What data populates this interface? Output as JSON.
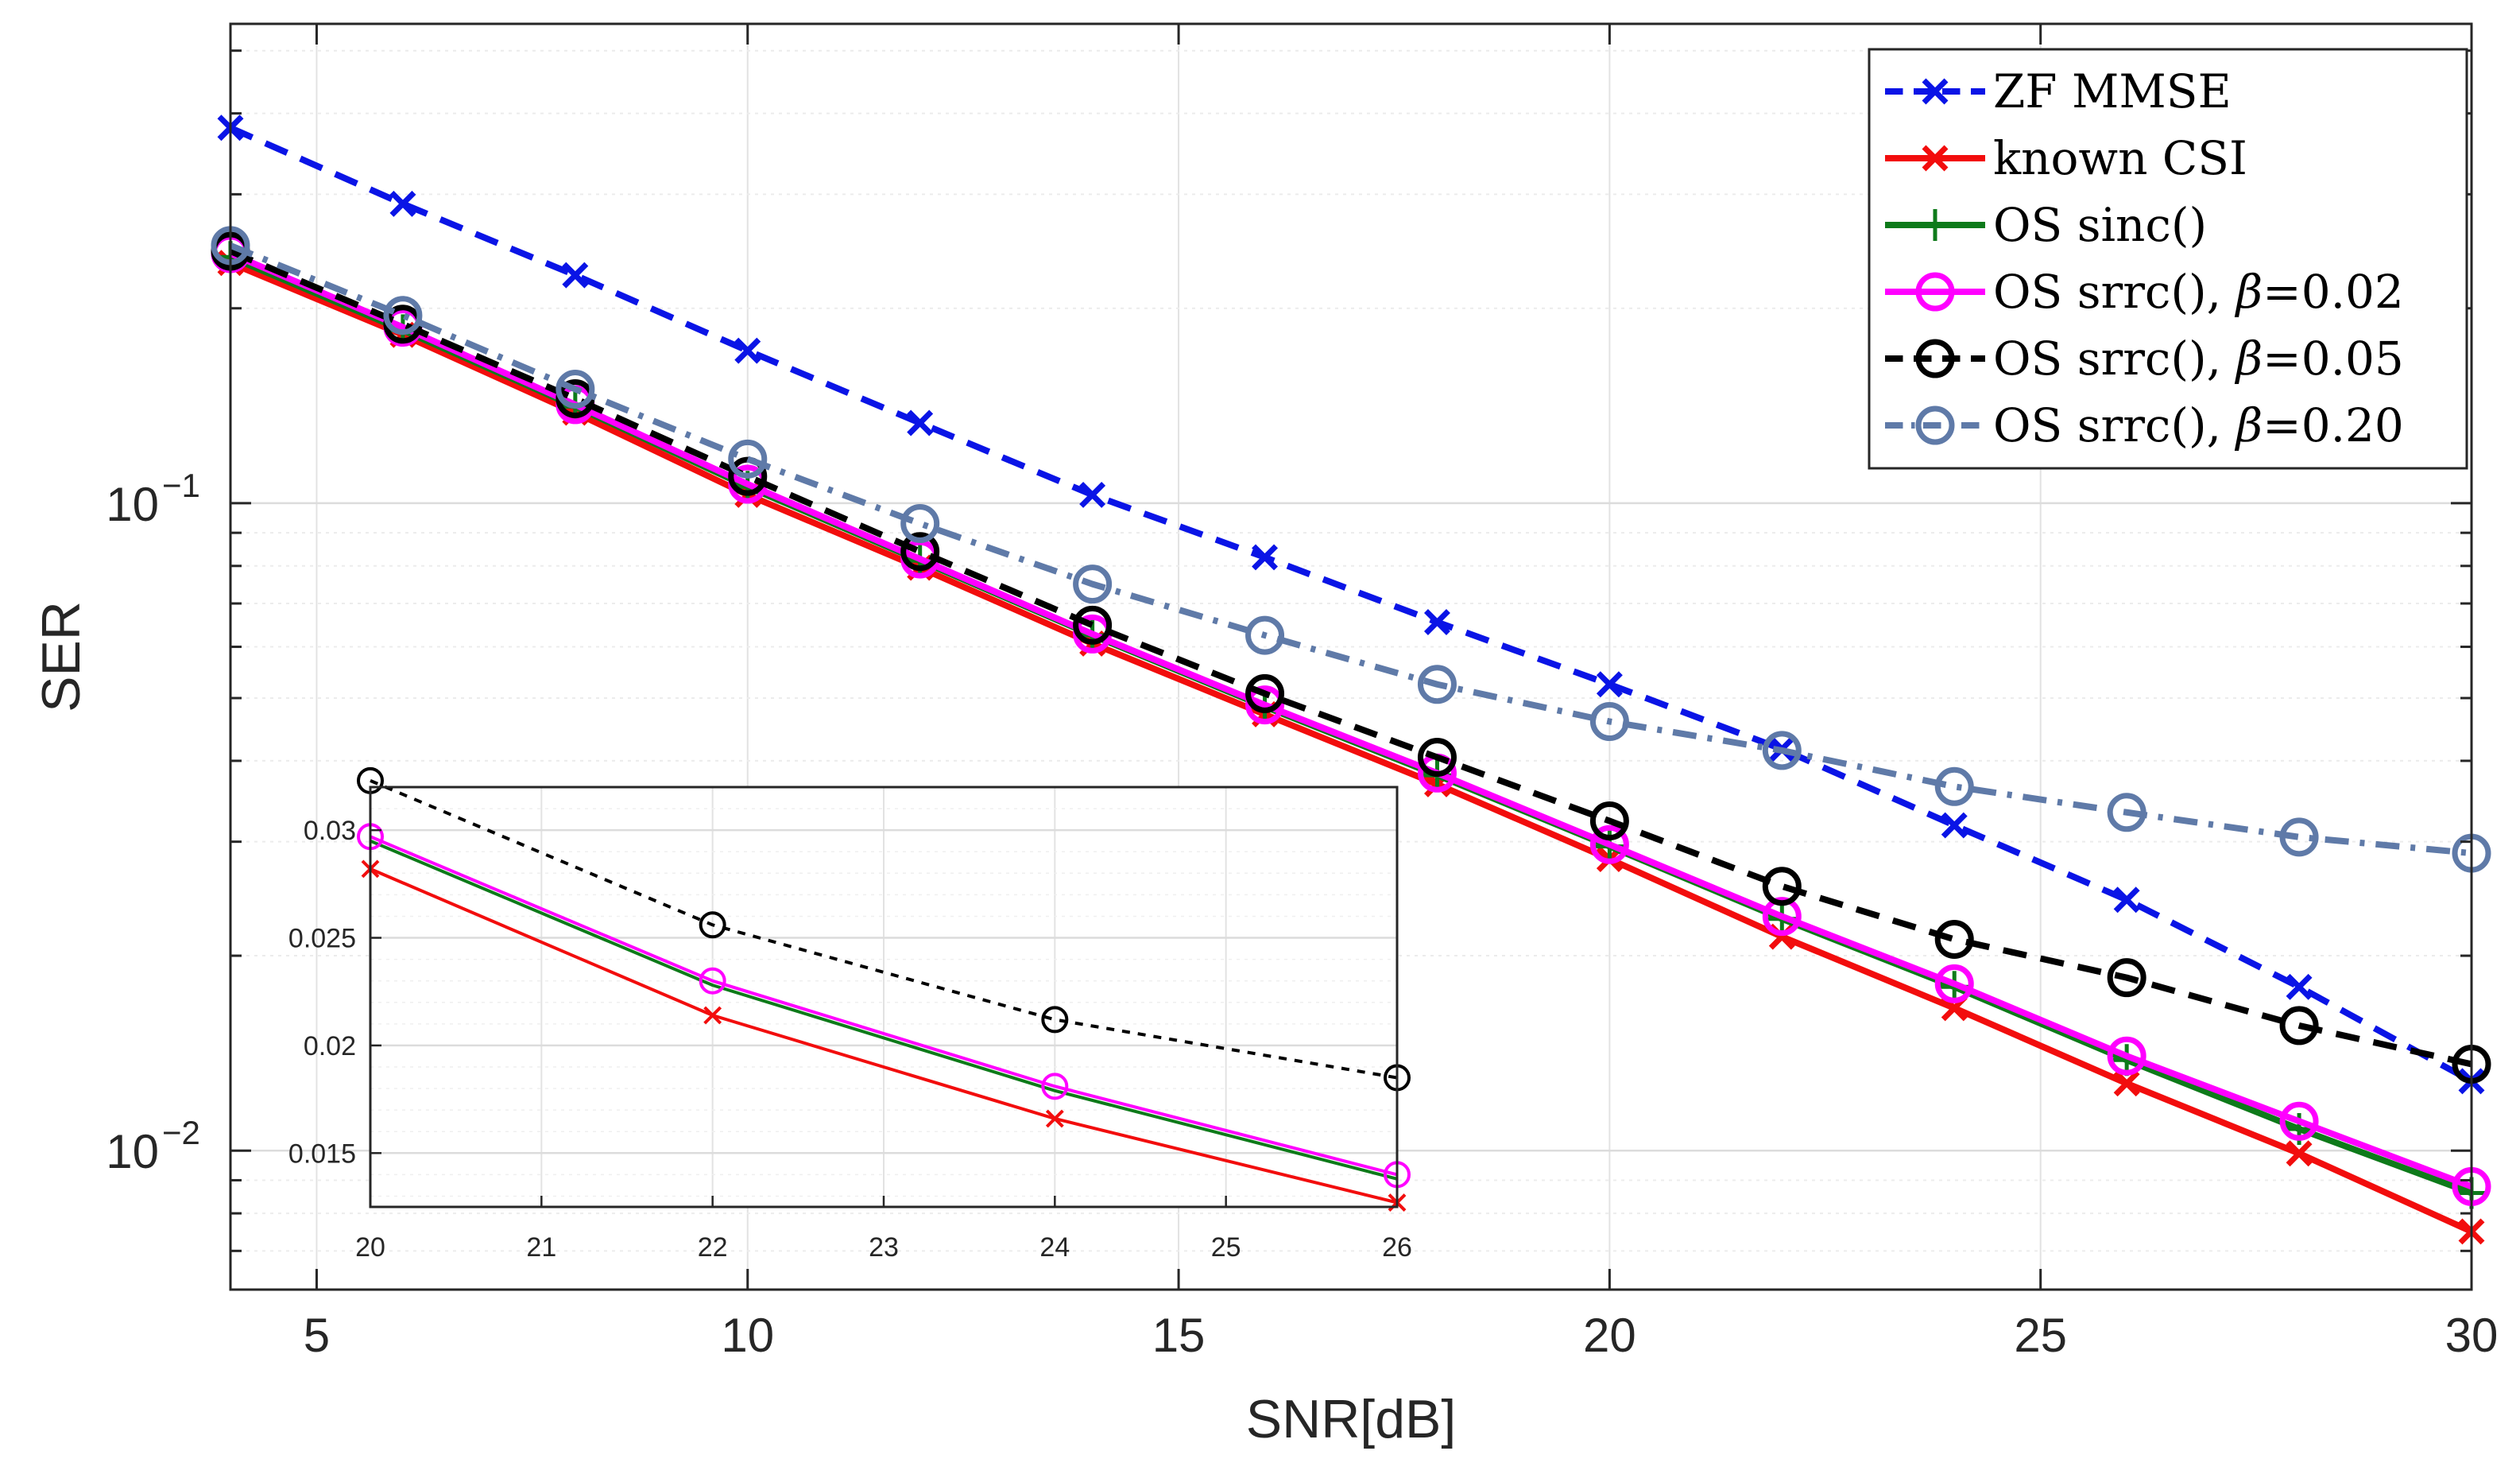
{
  "chart_data": [
    {
      "type": "line",
      "id": "main",
      "xlabel": "SNR[dB]",
      "ylabel": "SER",
      "xscale": "linear",
      "yscale": "log",
      "xlim": [
        4,
        30
      ],
      "ylim": [
        0.0061,
        0.55
      ],
      "grid": true,
      "legend_location": "top-right",
      "xticks": [
        5,
        10,
        15,
        20,
        25,
        30
      ],
      "xtick_labels": [
        "5",
        "10",
        "15",
        "20",
        "25",
        "30"
      ],
      "yticks": [
        0.1,
        0.01
      ],
      "ytick_labels": [
        {
          "base": "10",
          "exp": "−1"
        },
        {
          "base": "10",
          "exp": "−2"
        }
      ],
      "x": [
        4,
        6,
        8,
        10,
        12,
        14,
        16,
        18,
        20,
        22,
        24,
        26,
        28,
        30
      ],
      "series": [
        {
          "name": "ZF MMSE",
          "color": "#0a14e6",
          "dash": "dashed",
          "marker": "x",
          "values": [
            0.38,
            0.29,
            0.225,
            0.172,
            0.133,
            0.103,
            0.0825,
            0.0655,
            0.0525,
            0.0417,
            0.0318,
            0.0244,
            0.0179,
            0.0128
          ]
        },
        {
          "name": "known CSI",
          "color": "#f20d0d",
          "dash": "solid",
          "marker": "x",
          "values": [
            0.235,
            0.182,
            0.138,
            0.103,
            0.0795,
            0.0607,
            0.0472,
            0.0368,
            0.0282,
            0.0214,
            0.0166,
            0.0127,
            0.0099,
            0.0075
          ]
        },
        {
          "name": "OS sinc()",
          "color": "#0e7a1a",
          "dash": "solid",
          "marker": "+",
          "values": [
            0.24,
            0.185,
            0.141,
            0.106,
            0.0815,
            0.0625,
            0.0485,
            0.038,
            0.0295,
            0.0228,
            0.0179,
            0.0138,
            0.0108,
            0.0086
          ]
        },
        {
          "name": "OS srrc(), β=0.02",
          "color": "#ff00ff",
          "dash": "solid",
          "marker": "o",
          "values": [
            0.243,
            0.187,
            0.142,
            0.107,
            0.082,
            0.0628,
            0.0488,
            0.0383,
            0.0297,
            0.023,
            0.0181,
            0.014,
            0.0111,
            0.0088
          ]
        },
        {
          "name": "OS srrc(), β=0.05",
          "color": "#000000",
          "dash": "dashed",
          "marker": "o",
          "values": [
            0.245,
            0.189,
            0.145,
            0.11,
            0.0842,
            0.0648,
            0.0508,
            0.0405,
            0.0323,
            0.0256,
            0.0212,
            0.0185,
            0.0156,
            0.0136
          ]
        },
        {
          "name": "OS srrc(), β=0.20",
          "color": "#5f7aa8",
          "dash": "dashdot",
          "marker": "o",
          "values": [
            0.25,
            0.195,
            0.15,
            0.117,
            0.093,
            0.075,
            0.0625,
            0.0525,
            0.046,
            0.0415,
            0.0365,
            0.0333,
            0.0305,
            0.0288
          ]
        }
      ]
    },
    {
      "type": "line",
      "id": "inset",
      "xscale": "linear",
      "yscale": "linear",
      "xlim": [
        20,
        26
      ],
      "ylim": [
        0.0125,
        0.032
      ],
      "grid": true,
      "xticks": [
        20,
        21,
        22,
        23,
        24,
        25,
        26
      ],
      "xtick_labels": [
        "20",
        "21",
        "22",
        "23",
        "24",
        "25",
        "26"
      ],
      "yticks": [
        0.015,
        0.02,
        0.025,
        0.03
      ],
      "ytick_labels": [
        "0.015",
        "0.02",
        "0.025",
        "0.03"
      ],
      "x": [
        20,
        22,
        24,
        26
      ],
      "series": [
        {
          "name": "known CSI",
          "color": "#f20d0d",
          "dash": "solid",
          "marker": "x",
          "values": [
            0.0282,
            0.0214,
            0.0166,
            0.0127
          ]
        },
        {
          "name": "OS sinc()",
          "color": "#0e7a1a",
          "dash": "solid",
          "marker": "none",
          "values": [
            0.0295,
            0.0228,
            0.0179,
            0.0138
          ]
        },
        {
          "name": "OS srrc(), β=0.02",
          "color": "#ff00ff",
          "dash": "solid",
          "marker": "o",
          "values": [
            0.0297,
            0.023,
            0.0181,
            0.014
          ]
        },
        {
          "name": "OS srrc(), β=0.05",
          "color": "#000000",
          "dash": "dotted",
          "marker": "o",
          "values": [
            0.0323,
            0.0256,
            0.0212,
            0.0185
          ]
        }
      ]
    }
  ]
}
